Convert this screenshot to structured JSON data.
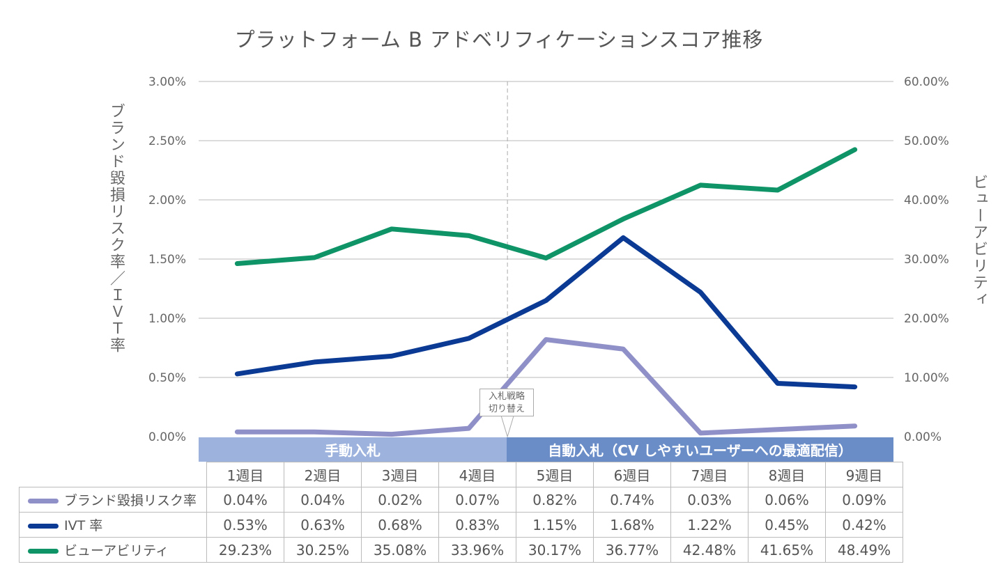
{
  "chart_data": {
    "type": "line",
    "title": "プラットフォーム B アドベリフィケーションスコア推移",
    "categories": [
      "1週目",
      "2週目",
      "3週目",
      "4週目",
      "5週目",
      "6週目",
      "7週目",
      "8週目",
      "9週目"
    ],
    "y_left": {
      "label": "ブランド毀損リスク率／ＩＶＴ率",
      "range": [
        0,
        3.0
      ],
      "ticks": [
        "0.00%",
        "0.50%",
        "1.00%",
        "1.50%",
        "2.00%",
        "2.50%",
        "3.00%"
      ]
    },
    "y_right": {
      "label": "ビューアビリティ",
      "range": [
        0,
        60.0
      ],
      "ticks": [
        "0.00%",
        "10.00%",
        "20.00%",
        "30.00%",
        "40.00%",
        "50.00%",
        "60.00%"
      ]
    },
    "grid": true,
    "series": [
      {
        "name": "ブランド毀損リスク率",
        "axis": "left",
        "color": "#9090c8",
        "values": [
          0.04,
          0.04,
          0.02,
          0.07,
          0.82,
          0.74,
          0.03,
          0.06,
          0.09
        ],
        "labels": [
          "0.04%",
          "0.04%",
          "0.02%",
          "0.07%",
          "0.82%",
          "0.74%",
          "0.03%",
          "0.06%",
          "0.09%"
        ]
      },
      {
        "name": "IVT 率",
        "axis": "left",
        "color": "#0b3a94",
        "values": [
          0.53,
          0.63,
          0.68,
          0.83,
          1.15,
          1.68,
          1.22,
          0.45,
          0.42
        ],
        "labels": [
          "0.53%",
          "0.63%",
          "0.68%",
          "0.83%",
          "1.15%",
          "1.68%",
          "1.22%",
          "0.45%",
          "0.42%"
        ]
      },
      {
        "name": "ビューアビリティ",
        "axis": "right",
        "color": "#0e9466",
        "values": [
          29.23,
          30.25,
          35.08,
          33.96,
          30.17,
          36.77,
          42.48,
          41.65,
          48.49
        ],
        "labels": [
          "29.23%",
          "30.25%",
          "35.08%",
          "33.96%",
          "30.17%",
          "36.77%",
          "42.48%",
          "41.65%",
          "48.49%"
        ]
      }
    ],
    "annotation": {
      "text_line1": "入札戦略",
      "text_line2": "切り替え",
      "between": [
        "4週目",
        "5週目"
      ]
    },
    "phases": [
      {
        "label": "手動入札",
        "weeks": 4,
        "color": "#9db3de"
      },
      {
        "label": "自動入札（CV しやすいユーザーへの最適配信）",
        "weeks": 5,
        "color": "#6a8dc8"
      }
    ]
  }
}
